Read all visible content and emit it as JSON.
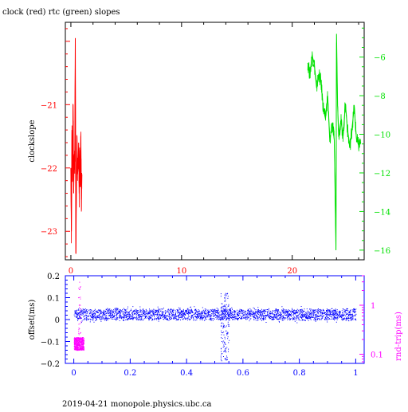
{
  "page": {
    "title": "clock (red) rtc (green) slopes",
    "footer": "2019-04-21 monopole.physics.ubc.ca"
  },
  "colors": {
    "clock": "#ff0000",
    "rtc": "#00e000",
    "offset": "#0000ff",
    "roundtrip": "#ff00ff",
    "axis": "#000000"
  },
  "chart_data": [
    {
      "type": "line",
      "title": "clock (red) rtc (green) slopes",
      "xlabel": "",
      "ylabel": "clockslope",
      "xlim": [
        -0.5,
        26.5
      ],
      "ylim": [
        -23.45,
        -19.7
      ],
      "y2lim": [
        -16.5,
        -4.2
      ],
      "xticks": [
        0,
        10,
        20
      ],
      "yticks": [
        -21,
        -22,
        -23
      ],
      "y2ticks": [
        -6,
        -8,
        -10,
        -12,
        -14,
        -16
      ],
      "series": [
        {
          "name": "clock (red)",
          "axis": "left",
          "x": [
            0.0,
            0.05,
            0.1,
            0.15,
            0.2,
            0.25,
            0.3,
            0.35,
            0.4,
            0.45,
            0.5,
            0.55,
            0.6,
            0.65,
            0.7,
            0.75,
            0.8,
            0.85,
            0.9,
            0.95,
            1.0
          ],
          "y": [
            -22.0,
            -23.0,
            -21.4,
            -22.2,
            -21.0,
            -22.4,
            -21.8,
            -21.9,
            -19.95,
            -23.35,
            -22.3,
            -21.5,
            -22.1,
            -22.0,
            -21.6,
            -22.4,
            -21.8,
            -22.3,
            -21.5,
            -22.5,
            -22.1
          ]
        },
        {
          "name": "rtc (green)",
          "axis": "right",
          "x": [
            21.4,
            21.6,
            21.8,
            22.0,
            22.2,
            22.4,
            22.6,
            22.8,
            23.0,
            23.2,
            23.4,
            23.6,
            23.8,
            23.95,
            24.0,
            24.1,
            24.2,
            24.4,
            24.6,
            24.8,
            25.0,
            25.2,
            25.4,
            25.6,
            25.8,
            26.0,
            26.2
          ],
          "y": [
            -6.3,
            -6.9,
            -5.9,
            -6.4,
            -7.6,
            -6.9,
            -7.3,
            -8.6,
            -9.2,
            -8.0,
            -10.4,
            -9.4,
            -10.3,
            -16.0,
            -4.8,
            -8.6,
            -10.0,
            -9.3,
            -10.1,
            -8.4,
            -9.8,
            -10.7,
            -9.7,
            -8.6,
            -10.2,
            -10.6,
            -10.4
          ]
        }
      ]
    },
    {
      "type": "scatter",
      "xlabel": "",
      "ylabel": "offset(ms)",
      "y2label": "rnd-trip(ms)",
      "xlim": [
        -0.03,
        1.03
      ],
      "ylim": [
        -0.2,
        0.2
      ],
      "y2scale": "log",
      "y2lim": [
        0.065,
        4.0
      ],
      "xticks": [
        0,
        0.2,
        0.4,
        0.6,
        0.8,
        1
      ],
      "yticks": [
        0.2,
        0.1,
        0,
        -0.1,
        -0.2
      ],
      "y2ticks": [
        1,
        0.1
      ],
      "series": [
        {
          "name": "offset",
          "axis": "left",
          "x_range": [
            0.0,
            1.0
          ],
          "y_center": 0.022,
          "y_band": [
            -0.0,
            0.045
          ],
          "outliers_x_range": [
            0.52,
            0.55
          ],
          "outliers_y_range": [
            -0.19,
            0.12
          ]
        },
        {
          "name": "rnd-trip",
          "axis": "right",
          "x_range": [
            0.0,
            0.035
          ],
          "y_range": [
            0.12,
            0.22
          ]
        }
      ]
    }
  ]
}
